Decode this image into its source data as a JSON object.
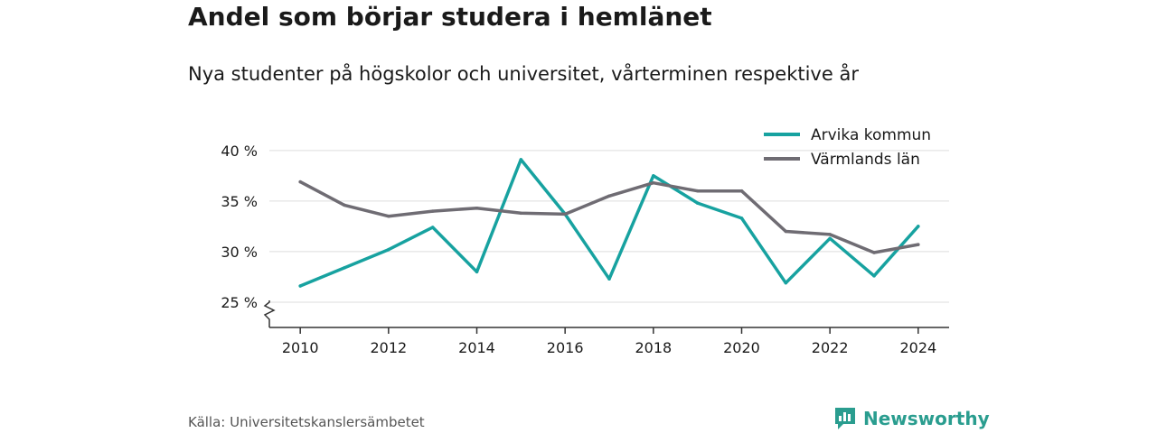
{
  "header": {
    "title": "Andel som börjar studera i hemlänet",
    "subtitle": "Nya studenter på högskolor och universitet, vårterminen respektive år"
  },
  "footer": {
    "source": "Källa: Universitetskanslersämbetet",
    "brand": "Newsworthy"
  },
  "colors": {
    "arvika": "#17a2a0",
    "varmland": "#6f6c73",
    "grid": "#dddddd",
    "axis": "#333333",
    "brand": "#2a9d8f"
  },
  "icons": {
    "brand_logo": "newsworthy-logo-icon",
    "axis_break": "axis-break-icon"
  },
  "chart_data": {
    "type": "line",
    "x": [
      2010,
      2011,
      2012,
      2013,
      2014,
      2015,
      2016,
      2017,
      2018,
      2019,
      2020,
      2021,
      2022,
      2023,
      2024
    ],
    "x_ticks": [
      2010,
      2012,
      2014,
      2016,
      2018,
      2020,
      2022,
      2024
    ],
    "x_tick_labels": [
      "2010",
      "2012",
      "2014",
      "2016",
      "2018",
      "2020",
      "2022",
      "2024"
    ],
    "y_ticks": [
      25,
      30,
      35,
      40
    ],
    "y_tick_labels": [
      "25 %",
      "30 %",
      "35 %",
      "40 %"
    ],
    "ylim": [
      22.5,
      41.5
    ],
    "xlim": [
      2009.3,
      2024.7
    ],
    "y_axis_break": true,
    "grid": true,
    "legend_position": "top-right",
    "series": [
      {
        "name": "Arvika kommun",
        "color": "#17a2a0",
        "values": [
          26.6,
          28.4,
          30.2,
          32.4,
          28.0,
          39.1,
          33.7,
          27.3,
          37.5,
          34.8,
          33.3,
          26.9,
          31.3,
          27.6,
          32.5
        ]
      },
      {
        "name": "Värmlands län",
        "color": "#6f6c73",
        "values": [
          36.9,
          34.6,
          33.5,
          34.0,
          34.3,
          33.8,
          33.7,
          35.5,
          36.8,
          36.0,
          36.0,
          32.0,
          31.7,
          29.9,
          30.7
        ]
      }
    ]
  }
}
